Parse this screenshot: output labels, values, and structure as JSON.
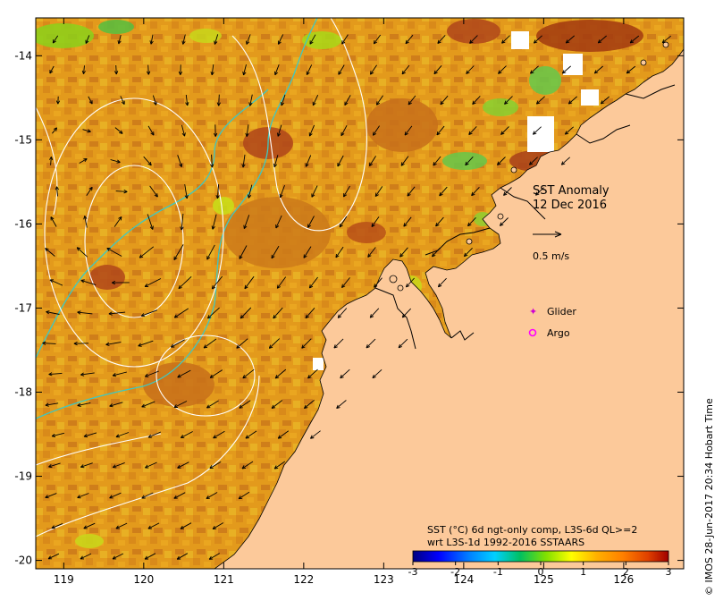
{
  "map": {
    "title": "SST Anomaly",
    "date": "12 Dec 2016",
    "vector_scale_label": "0.5 m/s",
    "legend": {
      "glider_label": "Glider",
      "argo_label": "Argo"
    },
    "colorbar": {
      "caption_line1": "SST (°C) 6d ngt-only comp, L3S-6d QL>=2",
      "caption_line2": "wrt L3S-1d 1992-2016 SSTAARS",
      "ticks": [
        "-3",
        "-2",
        "-1",
        "0",
        "1",
        "2",
        "3"
      ],
      "min": -3,
      "max": 3,
      "colors": [
        "#00007f",
        "#0000ff",
        "#0080ff",
        "#00d0ff",
        "#00c060",
        "#80e000",
        "#ffff00",
        "#ffb000",
        "#ff8000",
        "#e04000",
        "#a00000"
      ]
    },
    "credit": "© IMOS 28-Jun-2017 20:34 Hobart Time",
    "colors": {
      "land": "#fcc99a",
      "ocean_base": "#e39a1c",
      "coast": "#000000",
      "ssh_contour": "#ffffff",
      "shelf_contour": "#3fc8c0",
      "glider": "#d000d0",
      "argo": "#ff00ff"
    },
    "x_axis": {
      "min": 118.65,
      "max": 126.75,
      "ticks": [
        "119",
        "120",
        "121",
        "122",
        "123",
        "124",
        "125",
        "126"
      ]
    },
    "y_axis": {
      "min": -20.1,
      "max": -13.55,
      "ticks": [
        "-14",
        "-15",
        "-16",
        "-17",
        "-18",
        "-19",
        "-20"
      ]
    }
  }
}
